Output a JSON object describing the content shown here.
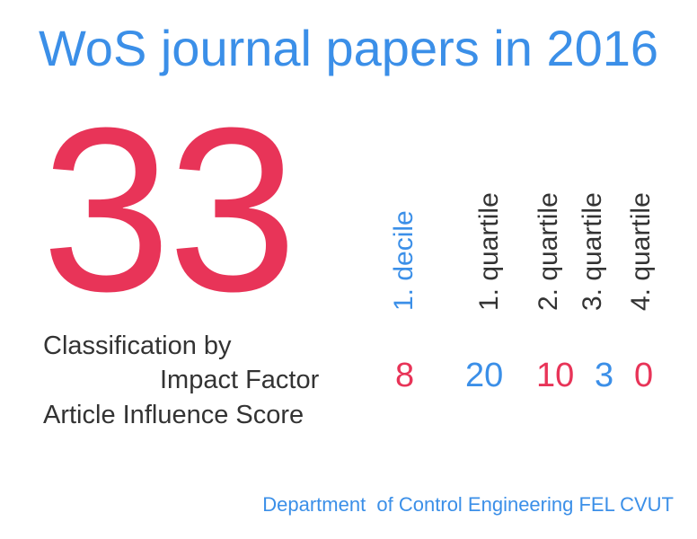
{
  "title": "WoS journal papers in 2016",
  "total": "33",
  "classification": {
    "line1": "Classification by",
    "line2": "Impact Factor",
    "line3": "Article Influence Score"
  },
  "categories": [
    {
      "label": "1. decile",
      "value": "8",
      "label_color": "#3b8fe8",
      "value_color": "#e83458"
    },
    {
      "label": "1. quartile",
      "value": "20",
      "label_color": "#333333",
      "value_color": "#3b8fe8"
    },
    {
      "label": "2. quartile",
      "value": "10",
      "label_color": "#333333",
      "value_color": "#e83458"
    },
    {
      "label": "3. quartile",
      "value": "3",
      "label_color": "#333333",
      "value_color": "#3b8fe8"
    },
    {
      "label": "4. quartile",
      "value": "0",
      "label_color": "#333333",
      "value_color": "#e83458"
    }
  ],
  "footer": "Department  of Control Engineering FEL CVUT",
  "colors": {
    "accent_blue": "#3b8fe8",
    "accent_red": "#e83458",
    "text_dark": "#333333"
  }
}
